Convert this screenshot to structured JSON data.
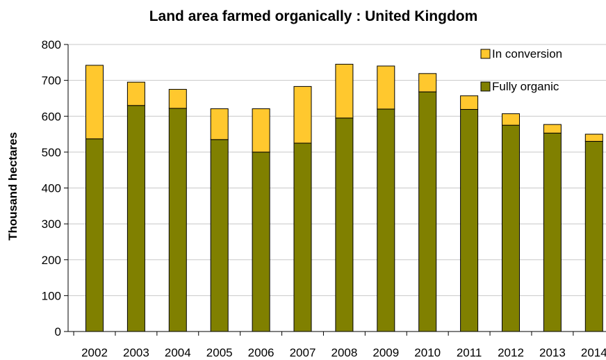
{
  "chart_data": {
    "type": "bar",
    "stacked": true,
    "title": "Land area farmed organically : United Kingdom",
    "xlabel": "",
    "ylabel": "Thousand hectares",
    "ylim": [
      0,
      800
    ],
    "yticks": [
      "0",
      "100",
      "200",
      "300",
      "400",
      "500",
      "600",
      "700",
      "800"
    ],
    "categories": [
      "2002",
      "2003",
      "2004",
      "2005",
      "2006",
      "2007",
      "2008",
      "2009",
      "2010",
      "2011",
      "2012",
      "2013",
      "2014"
    ],
    "series": [
      {
        "name": "Fully organic",
        "color": "#808000",
        "values": [
          537,
          630,
          622,
          535,
          500,
          525,
          595,
          620,
          668,
          619,
          575,
          553,
          530
        ]
      },
      {
        "name": "In conversion",
        "color": "#FFC82E",
        "values": [
          205,
          65,
          53,
          86,
          121,
          158,
          150,
          120,
          51,
          38,
          32,
          24,
          20
        ]
      }
    ],
    "grid": "horizontal",
    "legend_position": "top-right"
  }
}
